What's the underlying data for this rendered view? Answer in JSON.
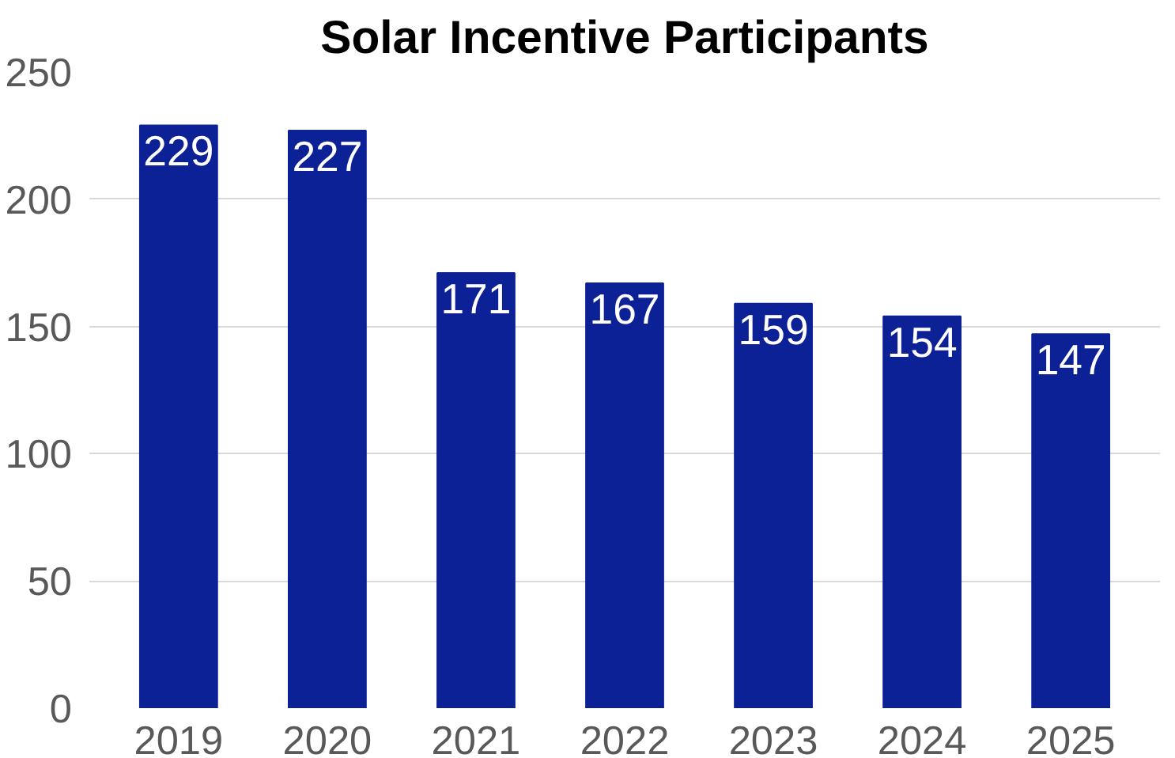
{
  "chart_data": {
    "type": "bar",
    "title": "Solar Incentive Participants",
    "categories": [
      "2019",
      "2020",
      "2021",
      "2022",
      "2023",
      "2024",
      "2025"
    ],
    "values": [
      229,
      227,
      171,
      167,
      159,
      154,
      147
    ],
    "color": "#0d2196",
    "ylim": [
      0,
      250
    ],
    "yticks": [
      0,
      50,
      100,
      150,
      200,
      250
    ],
    "grid": "y",
    "data_labels": true
  }
}
